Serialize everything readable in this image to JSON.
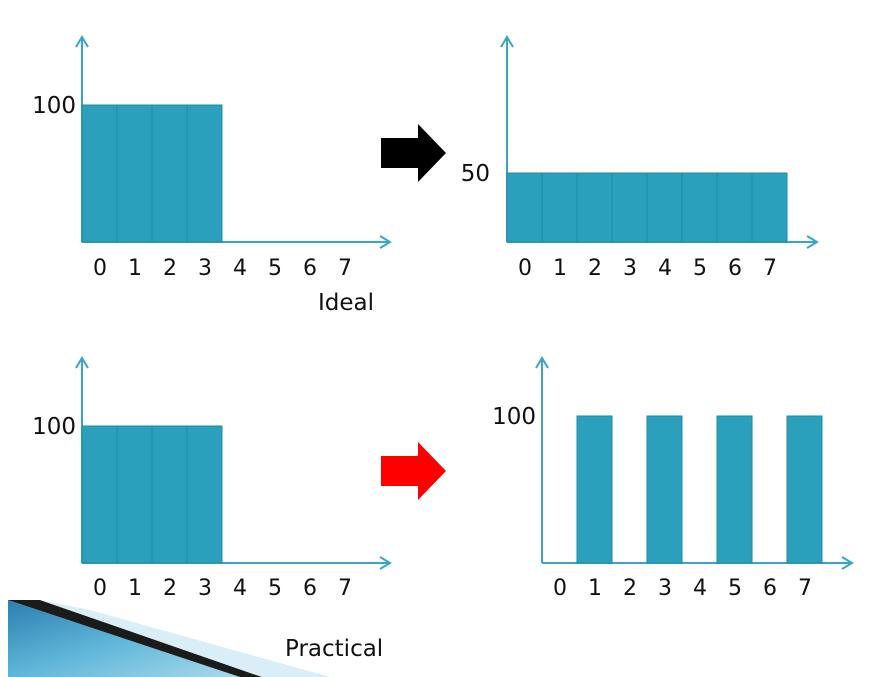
{
  "captions": {
    "ideal": "Ideal",
    "practical": "Practical"
  },
  "colors": {
    "bar": "#2ba0bd",
    "bar_edge": "#1f8aa5",
    "axis": "#3aa6c6",
    "arrow_ideal": "#000000",
    "arrow_practical": "#ff0000"
  },
  "arrows": [
    {
      "name": "ideal-transform-arrow",
      "color": "#000000"
    },
    {
      "name": "practical-transform-arrow",
      "color": "#ff0000"
    }
  ],
  "chart_data": [
    {
      "type": "bar",
      "id": "ideal-input",
      "categories": [
        "0",
        "1",
        "2",
        "3",
        "4",
        "5",
        "6",
        "7"
      ],
      "values": [
        100,
        100,
        100,
        100,
        0,
        0,
        0,
        0
      ],
      "yticks": [
        "100"
      ],
      "ylim": [
        0,
        130
      ]
    },
    {
      "type": "bar",
      "id": "ideal-output",
      "categories": [
        "0",
        "1",
        "2",
        "3",
        "4",
        "5",
        "6",
        "7"
      ],
      "values": [
        50,
        50,
        50,
        50,
        50,
        50,
        50,
        50
      ],
      "yticks": [
        "50"
      ],
      "ylim": [
        0,
        150
      ]
    },
    {
      "type": "bar",
      "id": "practical-input",
      "categories": [
        "0",
        "1",
        "2",
        "3",
        "4",
        "5",
        "6",
        "7"
      ],
      "values": [
        100,
        100,
        100,
        100,
        0,
        0,
        0,
        0
      ],
      "yticks": [
        "100"
      ],
      "ylim": [
        0,
        130
      ]
    },
    {
      "type": "bar",
      "id": "practical-output",
      "categories": [
        "0",
        "1",
        "2",
        "3",
        "4",
        "5",
        "6",
        "7"
      ],
      "values": [
        0,
        100,
        0,
        100,
        0,
        100,
        0,
        100
      ],
      "yticks": [
        "100"
      ],
      "ylim": [
        0,
        130
      ]
    }
  ]
}
